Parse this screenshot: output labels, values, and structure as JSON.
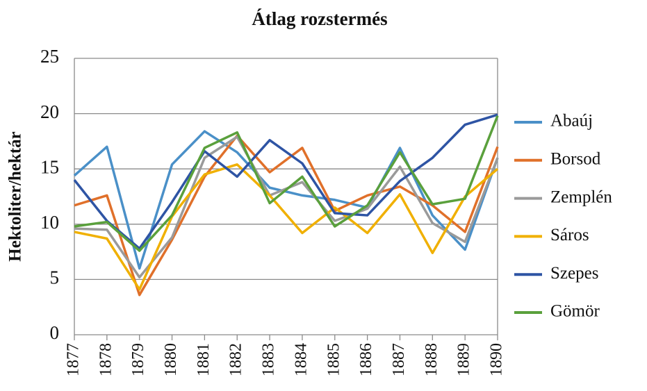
{
  "chart_data": {
    "type": "line",
    "title": "Átlag rozstermés",
    "y_label": "Hektoliter/hektár",
    "categories": [
      "1877",
      "1878",
      "1879",
      "1880",
      "1881",
      "1882",
      "1883",
      "1884",
      "1885",
      "1886",
      "1887",
      "1888",
      "1889",
      "1890"
    ],
    "series": [
      {
        "name": "Abaúj",
        "color": "#4a90c8",
        "values": [
          14.4,
          17.0,
          6.0,
          15.4,
          18.4,
          16.5,
          13.3,
          12.6,
          12.2,
          11.5,
          16.9,
          10.8,
          7.7,
          16.0
        ]
      },
      {
        "name": "Borsod",
        "color": "#e0702a",
        "values": [
          11.7,
          12.6,
          3.6,
          8.6,
          14.3,
          18.0,
          14.7,
          16.9,
          11.2,
          12.6,
          13.4,
          11.7,
          9.3,
          17.0
        ]
      },
      {
        "name": "Zemplén",
        "color": "#9a9a9a",
        "values": [
          9.6,
          9.5,
          5.2,
          8.8,
          16.0,
          17.9,
          12.6,
          13.8,
          10.3,
          11.4,
          15.2,
          10.1,
          8.4,
          16.0
        ]
      },
      {
        "name": "Sáros",
        "color": "#f0b000",
        "values": [
          9.3,
          8.7,
          4.1,
          10.7,
          14.5,
          15.4,
          12.6,
          9.2,
          11.5,
          9.2,
          12.7,
          7.4,
          12.5,
          15.0
        ]
      },
      {
        "name": "Szepes",
        "color": "#2e54a4",
        "values": [
          14.0,
          10.3,
          7.8,
          12.0,
          16.6,
          14.3,
          17.6,
          15.5,
          11.0,
          10.8,
          13.9,
          16.0,
          19.0,
          19.9
        ]
      },
      {
        "name": "Gömör",
        "color": "#5aa03c",
        "values": [
          9.8,
          10.2,
          7.6,
          10.8,
          16.9,
          18.3,
          11.9,
          14.3,
          9.8,
          11.7,
          16.5,
          11.8,
          12.3,
          19.8
        ]
      }
    ],
    "ylim": [
      0,
      25
    ],
    "yticks": [
      0,
      5,
      10,
      15,
      20,
      25
    ],
    "grid": true,
    "legend": "right"
  }
}
